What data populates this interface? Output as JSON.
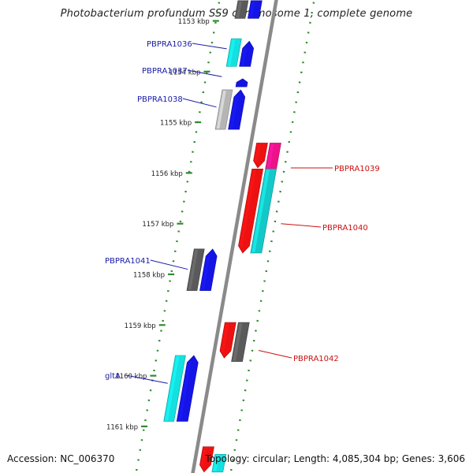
{
  "header": {
    "title": "Photobacterium profundum SS9 chromosome 1, complete genome"
  },
  "footer": {
    "accession": "Accession: NC_006370",
    "stats": "Topology: circular; Length: 4,085,304 bp; Genes: 3,606"
  },
  "colors": {
    "backbone": "#8a8a8a",
    "tick": "#2e8b2e",
    "forward_label": "#1a1aa8",
    "reverse_label": "#cc1111",
    "blue": "#1414e6",
    "cyan": "#14e0e0",
    "teal": "#14c8c8",
    "red": "#ee1111",
    "pink": "#ee1288",
    "dark_gray": "#5a5a5a",
    "light_gray": "#b5b5b5"
  },
  "ticks": [
    {
      "label": "1153 kbp"
    },
    {
      "label": "1154 kbp"
    },
    {
      "label": "1155 kbp"
    },
    {
      "label": "1156 kbp"
    },
    {
      "label": "1157 kbp"
    },
    {
      "label": "1158 kbp"
    },
    {
      "label": "1159 kbp"
    },
    {
      "label": "1160 kbp"
    },
    {
      "label": "1161 kbp"
    }
  ],
  "gene_labels": [
    {
      "name": "PBPRA1036",
      "strand": "forward"
    },
    {
      "name": "PBPRA1037",
      "strand": "forward"
    },
    {
      "name": "PBPRA1038",
      "strand": "forward"
    },
    {
      "name": "PBPRA1039",
      "strand": "reverse"
    },
    {
      "name": "PBPRA1040",
      "strand": "reverse"
    },
    {
      "name": "PBPRA1041",
      "strand": "forward"
    },
    {
      "name": "PBPRA1042",
      "strand": "reverse"
    },
    {
      "name": "gltA",
      "strand": "forward"
    }
  ],
  "features": [
    {
      "strand": "forward",
      "lane": 0,
      "pos": 1152.6,
      "end": 1152.95,
      "color": "dark_gray",
      "arrow": false
    },
    {
      "strand": "forward",
      "lane": 1,
      "pos": 1152.6,
      "end": 1152.95,
      "color": "blue",
      "arrow": false
    },
    {
      "strand": "forward",
      "lane": 0,
      "pos": 1153.35,
      "end": 1153.9,
      "color": "cyan",
      "arrow": false
    },
    {
      "strand": "forward",
      "lane": 1,
      "pos": 1153.4,
      "end": 1153.9,
      "color": "blue",
      "arrow": true
    },
    {
      "strand": "forward",
      "lane": 1,
      "pos": 1154.14,
      "end": 1154.3,
      "color": "blue",
      "arrow": true
    },
    {
      "strand": "forward",
      "lane": 0,
      "pos": 1154.36,
      "end": 1155.14,
      "color": "light_gray",
      "arrow": false
    },
    {
      "strand": "forward",
      "lane": 1,
      "pos": 1154.36,
      "end": 1155.14,
      "color": "blue",
      "arrow": true
    },
    {
      "strand": "reverse",
      "lane": 0,
      "pos": 1155.41,
      "end": 1155.9,
      "color": "red",
      "arrow": true
    },
    {
      "strand": "reverse",
      "lane": 1,
      "pos": 1155.41,
      "end": 1155.92,
      "color": "pink",
      "arrow": false
    },
    {
      "strand": "reverse",
      "lane": 0,
      "pos": 1155.92,
      "end": 1157.58,
      "color": "red",
      "arrow": true
    },
    {
      "strand": "reverse",
      "lane": 1,
      "pos": 1155.92,
      "end": 1157.58,
      "color": "teal",
      "arrow": false
    },
    {
      "strand": "forward",
      "lane": 0,
      "pos": 1157.5,
      "end": 1158.32,
      "color": "dark_gray",
      "arrow": false
    },
    {
      "strand": "forward",
      "lane": 1,
      "pos": 1157.5,
      "end": 1158.32,
      "color": "blue",
      "arrow": true
    },
    {
      "strand": "reverse",
      "lane": 0,
      "pos": 1158.95,
      "end": 1159.65,
      "color": "red",
      "arrow": true
    },
    {
      "strand": "reverse",
      "lane": 1,
      "pos": 1158.95,
      "end": 1159.72,
      "color": "dark_gray",
      "arrow": false
    },
    {
      "strand": "forward",
      "lane": 0,
      "pos": 1159.6,
      "end": 1160.9,
      "color": "cyan",
      "arrow": false
    },
    {
      "strand": "forward",
      "lane": 1,
      "pos": 1159.6,
      "end": 1160.9,
      "color": "blue",
      "arrow": true
    },
    {
      "strand": "reverse",
      "lane": 0,
      "pos": 1161.4,
      "end": 1161.9,
      "color": "red",
      "arrow": true
    },
    {
      "strand": "reverse",
      "lane": 1,
      "pos": 1161.55,
      "end": 1161.9,
      "color": "cyan",
      "arrow": false
    }
  ]
}
